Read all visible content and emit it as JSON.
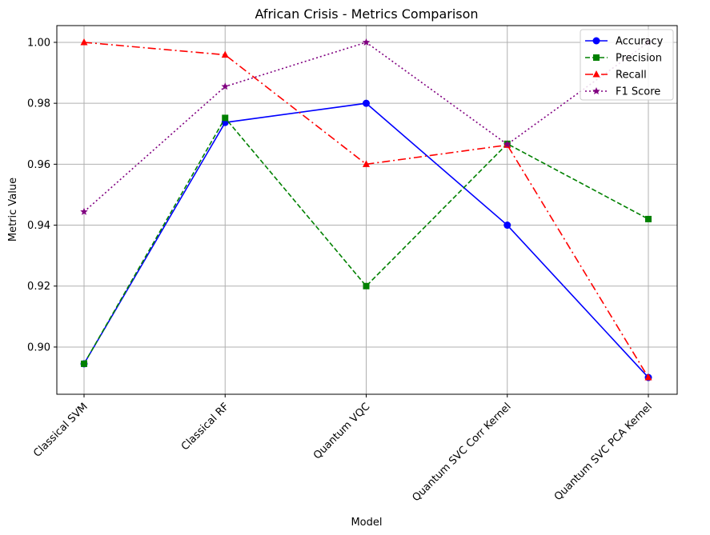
{
  "chart_data": {
    "type": "line",
    "title": "African Crisis - Metrics Comparison",
    "xlabel": "Model",
    "ylabel": "Metric Value",
    "categories": [
      "Classical SVM",
      "Classical RF",
      "Quantum VQC",
      "Quantum SVC Corr Kernel",
      "Quantum SVC PCA Kernel"
    ],
    "ylim": [
      0.8845,
      1.0055
    ],
    "yticks": [
      0.9,
      0.92,
      0.94,
      0.96,
      0.98,
      1.0
    ],
    "ytick_labels": [
      "0.90",
      "0.92",
      "0.94",
      "0.96",
      "0.98",
      "1.00"
    ],
    "grid": true,
    "legend_position": "top-right",
    "series": [
      {
        "name": "Accuracy",
        "color": "#0000ff",
        "marker": "circle",
        "linestyle": "solid",
        "values": [
          0.8945,
          0.9737,
          0.98,
          0.94,
          0.89
        ]
      },
      {
        "name": "Precision",
        "color": "#008000",
        "marker": "square",
        "linestyle": "dashed",
        "values": [
          0.8945,
          0.9752,
          0.92,
          0.9667,
          0.942
        ]
      },
      {
        "name": "Recall",
        "color": "#ff0000",
        "marker": "triangle",
        "linestyle": "dashdot",
        "values": [
          1.0,
          0.9959,
          0.96,
          0.9663,
          0.89
        ]
      },
      {
        "name": "F1 Score",
        "color": "#800080",
        "marker": "star",
        "linestyle": "dotted",
        "values": [
          0.9444,
          0.9855,
          1.0,
          0.9665,
          1.0
        ]
      }
    ]
  }
}
